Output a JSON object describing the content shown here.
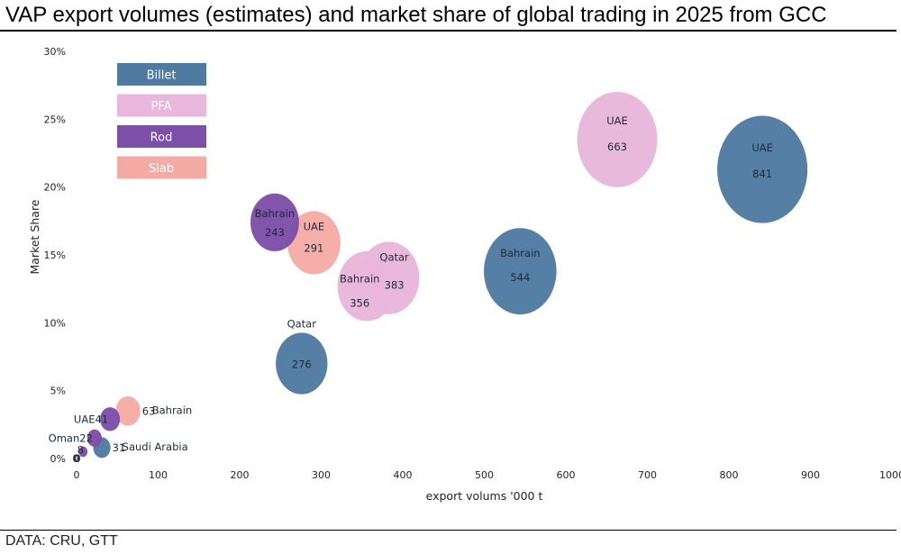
{
  "title": "VAP export volumes (estimates) and market share of global trading in 2025 from GCC",
  "source": "DATA: CRU, GTT",
  "colors": {
    "Billet": "#4f7ba1",
    "PFA": "#e8b7db",
    "Rod": "#7c50a8",
    "Slab": "#f5aba5"
  },
  "chart_data": {
    "type": "bubble",
    "xlabel": "export volums '000 t",
    "ylabel": "Market Share",
    "xlim": [
      0,
      1000
    ],
    "ylim": [
      0,
      30
    ],
    "x_ticks": [
      "0",
      "100",
      "200",
      "300",
      "400",
      "500",
      "600",
      "700",
      "800",
      "900",
      "1000"
    ],
    "y_ticks": [
      "0%",
      "5%",
      "10%",
      "15%",
      "20%",
      "25%",
      "30%"
    ],
    "legend_position": "top-left",
    "series": [
      {
        "name": "Billet",
        "points": [
          {
            "country": "UAE",
            "x": 841,
            "y": 21.3,
            "label": "841"
          },
          {
            "country": "Bahrain",
            "x": 544,
            "y": 13.8,
            "label": "544"
          },
          {
            "country": "Qatar",
            "x": 276,
            "y": 7.0,
            "label": "276"
          },
          {
            "country": "Saudi Arabia",
            "x": 31,
            "y": 0.8,
            "label": "31"
          },
          {
            "country": "",
            "x": 0,
            "y": 0,
            "label": "0"
          }
        ]
      },
      {
        "name": "PFA",
        "points": [
          {
            "country": "UAE",
            "x": 663,
            "y": 23.5,
            "label": "663"
          },
          {
            "country": "Qatar",
            "x": 383,
            "y": 13.3,
            "label": "383"
          },
          {
            "country": "Bahrain",
            "x": 356,
            "y": 12.7,
            "label": "356"
          },
          {
            "country": "",
            "x": 0,
            "y": 0,
            "label": "0"
          }
        ]
      },
      {
        "name": "Rod",
        "points": [
          {
            "country": "Bahrain",
            "x": 243,
            "y": 17.4,
            "label": "243"
          },
          {
            "country": "UAE",
            "x": 41,
            "y": 2.9,
            "label": "41"
          },
          {
            "country": "Oman",
            "x": 22,
            "y": 1.5,
            "label": "22"
          },
          {
            "country": "",
            "x": 8,
            "y": 0.5,
            "label": "8"
          }
        ]
      },
      {
        "name": "Slab",
        "points": [
          {
            "country": "UAE",
            "x": 291,
            "y": 15.9,
            "label": "291"
          },
          {
            "country": "Bahrain",
            "x": 63,
            "y": 3.5,
            "label": "63"
          },
          {
            "country": "",
            "x": 0,
            "y": 0,
            "label": "0"
          }
        ]
      }
    ]
  }
}
